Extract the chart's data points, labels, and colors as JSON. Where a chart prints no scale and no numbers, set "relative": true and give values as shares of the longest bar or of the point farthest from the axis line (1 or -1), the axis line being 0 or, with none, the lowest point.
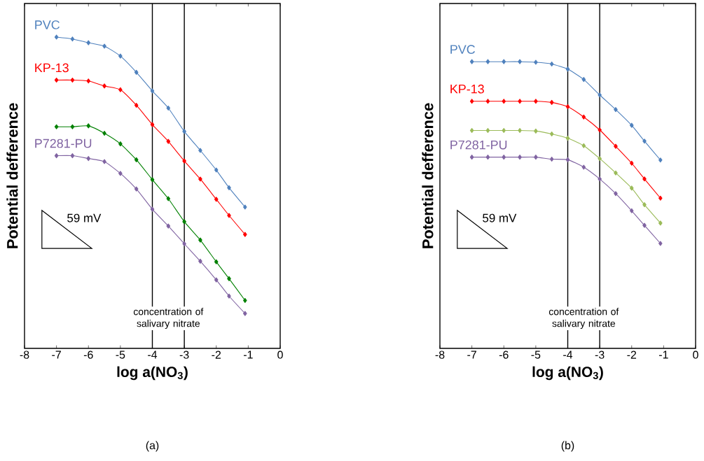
{
  "chart_data": [
    {
      "type": "line",
      "relative": true,
      "xlabel": "log a(NO$_{3}$)",
      "ylabel": "Potential defference",
      "xlim": [
        -8,
        0
      ],
      "xticks": [
        -8,
        -7,
        -6,
        -5,
        -4,
        -3,
        -2,
        -1,
        0
      ],
      "marker": "diamond",
      "line_style": "solid",
      "x": [
        -7,
        -6.5,
        -6,
        -5.5,
        -5,
        -4.5,
        -4,
        -3.5,
        -3,
        -2.5,
        -2,
        -1.6,
        -1.1
      ],
      "series": [
        {
          "name": "PVC",
          "color": "#4f81bd",
          "values": [
            1.0,
            0.994,
            0.982,
            0.971,
            0.939,
            0.887,
            0.827,
            0.772,
            0.697,
            0.636,
            0.573,
            0.516,
            0.454
          ]
        },
        {
          "name": "KP-13",
          "color": "#ff0000",
          "values": [
            0.862,
            0.862,
            0.859,
            0.843,
            0.831,
            0.781,
            0.719,
            0.665,
            0.602,
            0.544,
            0.479,
            0.427,
            0.366
          ]
        },
        {
          "color": "#008000",
          "values": [
            0.712,
            0.712,
            0.715,
            0.691,
            0.657,
            0.606,
            0.542,
            0.481,
            0.407,
            0.348,
            0.278,
            0.224,
            0.154
          ]
        },
        {
          "name": "P7281-PU",
          "color": "#8064a2",
          "values": [
            0.619,
            0.619,
            0.61,
            0.6,
            0.562,
            0.512,
            0.447,
            0.393,
            0.336,
            0.28,
            0.22,
            0.168,
            0.112
          ]
        }
      ],
      "ref_lines": [
        {
          "axis": "x",
          "value": -4
        },
        {
          "axis": "x",
          "value": -3
        }
      ],
      "annotations": [
        "concentration of salivary nitrate",
        "59 mV",
        "(a)"
      ]
    },
    {
      "type": "line",
      "relative": true,
      "xlabel": "log a(NO$_{3}$)",
      "ylabel": "Potential defference",
      "xlim": [
        -8,
        0
      ],
      "xticks": [
        -8,
        -7,
        -6,
        -5,
        -4,
        -3,
        -2,
        -1,
        0
      ],
      "marker": "diamond",
      "line_style": "solid",
      "x": [
        -7,
        -6.5,
        -6,
        -5.5,
        -5,
        -4.5,
        -4,
        -3.5,
        -3,
        -2.5,
        -2,
        -1.6,
        -1.1
      ],
      "series": [
        {
          "name": "PVC",
          "color": "#4f81bd",
          "values": [
            1.0,
            1.0,
            1.0,
            1.0,
            0.998,
            0.992,
            0.974,
            0.938,
            0.884,
            0.833,
            0.778,
            0.723,
            0.657
          ]
        },
        {
          "name": "KP-13",
          "color": "#ff0000",
          "values": [
            0.862,
            0.862,
            0.862,
            0.862,
            0.862,
            0.858,
            0.843,
            0.807,
            0.762,
            0.705,
            0.646,
            0.591,
            0.524
          ]
        },
        {
          "color": "#9bbb59",
          "values": [
            0.76,
            0.76,
            0.76,
            0.76,
            0.758,
            0.748,
            0.733,
            0.707,
            0.662,
            0.612,
            0.559,
            0.501,
            0.437
          ]
        },
        {
          "name": "P7281-PU",
          "color": "#8064a2",
          "values": [
            0.667,
            0.667,
            0.667,
            0.667,
            0.667,
            0.66,
            0.658,
            0.632,
            0.591,
            0.54,
            0.48,
            0.429,
            0.366
          ]
        }
      ],
      "ref_lines": [
        {
          "axis": "x",
          "value": -4
        },
        {
          "axis": "x",
          "value": -3
        }
      ],
      "annotations": [
        "concentration of salivary nitrate",
        "59 mV",
        "(b)"
      ]
    }
  ]
}
